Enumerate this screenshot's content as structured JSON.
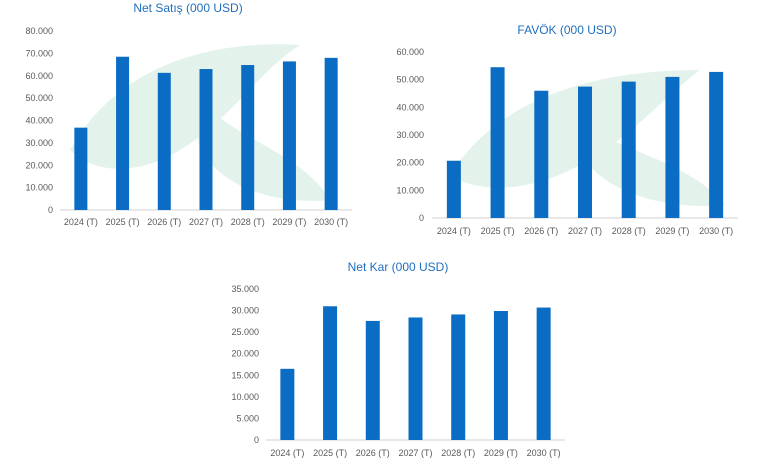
{
  "colors": {
    "bar": "#0a6cc2",
    "title": "#1f6fbf",
    "tick": "#595959",
    "watermark": "#e3f3ec"
  },
  "chart_data": [
    {
      "type": "bar",
      "title": "Net Satış (000 USD)",
      "categories": [
        "2024 (T)",
        "2025 (T)",
        "2026 (T)",
        "2027 (T)",
        "2028 (T)",
        "2029 (T)",
        "2030 (T)"
      ],
      "values": [
        36800,
        68500,
        61300,
        63000,
        64800,
        66400,
        68000
      ],
      "yticks": [
        "0",
        "10.000",
        "20.000",
        "30.000",
        "40.000",
        "50.000",
        "60.000",
        "70.000",
        "80.000"
      ],
      "ylim": [
        0,
        80000
      ],
      "xlabel": "",
      "ylabel": ""
    },
    {
      "type": "bar",
      "title": "FAVÖK (000 USD)",
      "categories": [
        "2024 (T)",
        "2025 (T)",
        "2026 (T)",
        "2027 (T)",
        "2028 (T)",
        "2029 (T)",
        "2030 (T)"
      ],
      "values": [
        20700,
        54500,
        46000,
        47500,
        49300,
        51000,
        52800
      ],
      "yticks": [
        "0",
        "10.000",
        "20.000",
        "30.000",
        "40.000",
        "50.000",
        "60.000"
      ],
      "ylim": [
        0,
        60000
      ],
      "xlabel": "",
      "ylabel": ""
    },
    {
      "type": "bar",
      "title": "Net Kar (000 USD)",
      "categories": [
        "2024 (T)",
        "2025 (T)",
        "2026 (T)",
        "2027 (T)",
        "2028 (T)",
        "2029 (T)",
        "2030 (T)"
      ],
      "values": [
        16500,
        31000,
        27600,
        28400,
        29100,
        29900,
        30700
      ],
      "yticks": [
        "0",
        "5.000",
        "10.000",
        "15.000",
        "20.000",
        "25.000",
        "30.000",
        "35.000"
      ],
      "ylim": [
        0,
        35000
      ],
      "xlabel": "",
      "ylabel": ""
    }
  ]
}
